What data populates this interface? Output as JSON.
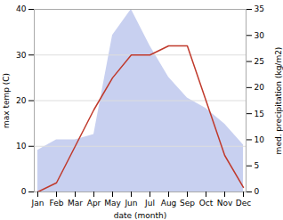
{
  "chart_data": {
    "type": "line",
    "categories": [
      "Jan",
      "Feb",
      "Mar",
      "Apr",
      "May",
      "Jun",
      "Jul",
      "Aug",
      "Sep",
      "Oct",
      "Nov",
      "Dec"
    ],
    "xlabel": "date (month)",
    "ylabel": "max temp (C)",
    "y2label": "med. precipitation (kg/m2)",
    "series": [
      {
        "type": "line",
        "color": "#c0392b",
        "values": [
          0,
          2,
          10,
          18,
          25,
          30,
          30,
          32,
          32,
          20,
          8,
          1
        ]
      },
      {
        "type": "area",
        "color": "#c8d0f0",
        "axis": "y2",
        "values": [
          8,
          10,
          10,
          11,
          30,
          35,
          28,
          22,
          18,
          16,
          13,
          9
        ]
      }
    ],
    "ylim": [
      0,
      40
    ],
    "yticks": [
      0,
      10,
      20,
      30,
      40
    ],
    "y2lim": [
      0,
      35
    ],
    "y2ticks": [
      0,
      5,
      10,
      15,
      20,
      25,
      30,
      35
    ],
    "grid": true
  }
}
